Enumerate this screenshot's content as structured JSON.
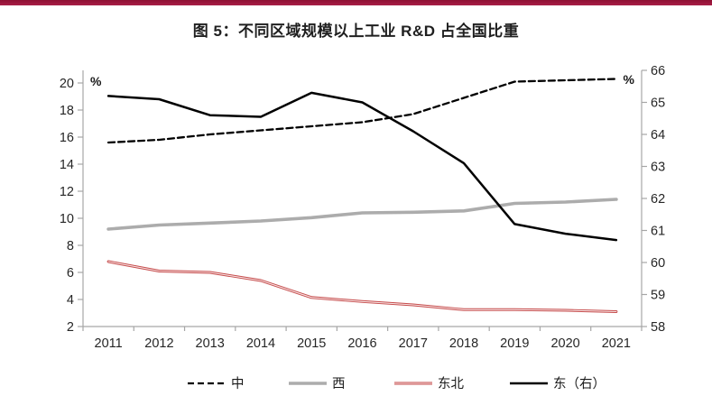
{
  "banner_color": "#9e1c41",
  "chart_data": {
    "type": "line",
    "title": "图 5：不同区域规模以上工业 R&D 占全国比重",
    "x": [
      "2011",
      "2012",
      "2013",
      "2014",
      "2015",
      "2016",
      "2017",
      "2018",
      "2019",
      "2020",
      "2021"
    ],
    "left_axis": {
      "unit": "%",
      "min": 2,
      "max": 20,
      "ticks": [
        2,
        4,
        6,
        8,
        10,
        12,
        14,
        16,
        18,
        20
      ]
    },
    "right_axis": {
      "unit": "%",
      "min": 58,
      "max": 66,
      "ticks": [
        58,
        59,
        60,
        61,
        62,
        63,
        64,
        65,
        66
      ]
    },
    "grid": "off",
    "legend_position": "bottom",
    "axis_color": "#a6a6a6",
    "series": [
      {
        "id": "central",
        "name": "中",
        "axis": "left",
        "style": "dashed",
        "color": "#000000",
        "values": [
          15.6,
          15.8,
          16.2,
          16.5,
          16.8,
          17.1,
          17.7,
          18.9,
          20.1,
          20.2,
          20.3
        ]
      },
      {
        "id": "west",
        "name": "西",
        "axis": "left",
        "style": "solid",
        "color": "#acacac",
        "values": [
          9.2,
          9.5,
          9.65,
          9.8,
          10.05,
          10.4,
          10.45,
          10.55,
          11.1,
          11.2,
          11.4
        ]
      },
      {
        "id": "northeast",
        "name": "东北",
        "axis": "left",
        "style": "double",
        "color": "#c64c4c",
        "inner_color": "#f6e3e3",
        "values": [
          6.8,
          6.1,
          6.0,
          5.4,
          4.15,
          3.85,
          3.6,
          3.25,
          3.25,
          3.2,
          3.1
        ]
      },
      {
        "id": "east-right",
        "name": "东（右）",
        "axis": "right",
        "style": "solid",
        "color": "#000000",
        "values": [
          65.2,
          65.1,
          64.6,
          64.55,
          65.3,
          65.0,
          64.1,
          63.1,
          61.2,
          60.9,
          60.7
        ]
      }
    ]
  }
}
